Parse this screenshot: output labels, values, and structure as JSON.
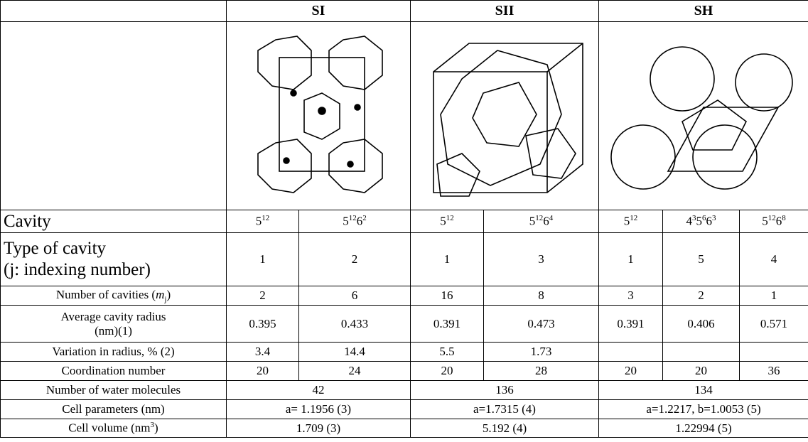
{
  "table": {
    "header": [
      "SI",
      "SII",
      "SH"
    ],
    "rows": [
      {
        "label": [
          "Cavity"
        ],
        "cells": [
          [
            [
              "5",
              "12"
            ]
          ],
          [
            [
              "5",
              "12"
            ],
            [
              "6",
              "2"
            ]
          ],
          [
            [
              "5",
              "12"
            ]
          ],
          [
            [
              "5",
              "12"
            ],
            [
              "6",
              "4"
            ]
          ],
          [
            [
              "5",
              "12"
            ]
          ],
          [
            [
              "4",
              "3"
            ],
            [
              "5",
              "6"
            ],
            [
              "6",
              "3"
            ]
          ],
          [
            [
              "5",
              "12"
            ],
            [
              "6",
              "8"
            ]
          ]
        ]
      },
      {
        "label": [
          "Type of cavity",
          "(j: indexing number)"
        ],
        "cells": [
          1,
          2,
          1,
          3,
          1,
          5,
          4
        ]
      },
      {
        "label": [
          "Number of cavities (",
          "m",
          "j",
          ")"
        ],
        "cells": [
          2,
          6,
          16,
          8,
          3,
          2,
          1
        ]
      },
      {
        "label": [
          "Average cavity radius",
          "(nm)(1)"
        ],
        "cells": [
          0.395,
          0.433,
          0.391,
          0.473,
          0.391,
          0.406,
          0.571
        ]
      },
      {
        "label": [
          "Variation in radius, % (2)"
        ],
        "cells": [
          3.4,
          14.4,
          5.5,
          1.73,
          null,
          null,
          null
        ]
      },
      {
        "label": [
          "Coordination number"
        ],
        "cells": [
          20,
          24,
          20,
          28,
          20,
          20,
          36
        ]
      },
      {
        "label": [
          "Number of water molecules"
        ],
        "cells": [
          42,
          136,
          134
        ]
      },
      {
        "label": [
          "Cell parameters (nm)"
        ],
        "cells": [
          "a= 1.1956 (3)",
          "a=1.7315 (4)",
          "a=1.2217, b=1.0053 (5)"
        ]
      },
      {
        "label": [
          "Cell volume (nm",
          "3",
          ")"
        ],
        "cells": [
          "1.709 (3)",
          "5.192 (4)",
          "1.22994 (5)"
        ]
      }
    ]
  }
}
